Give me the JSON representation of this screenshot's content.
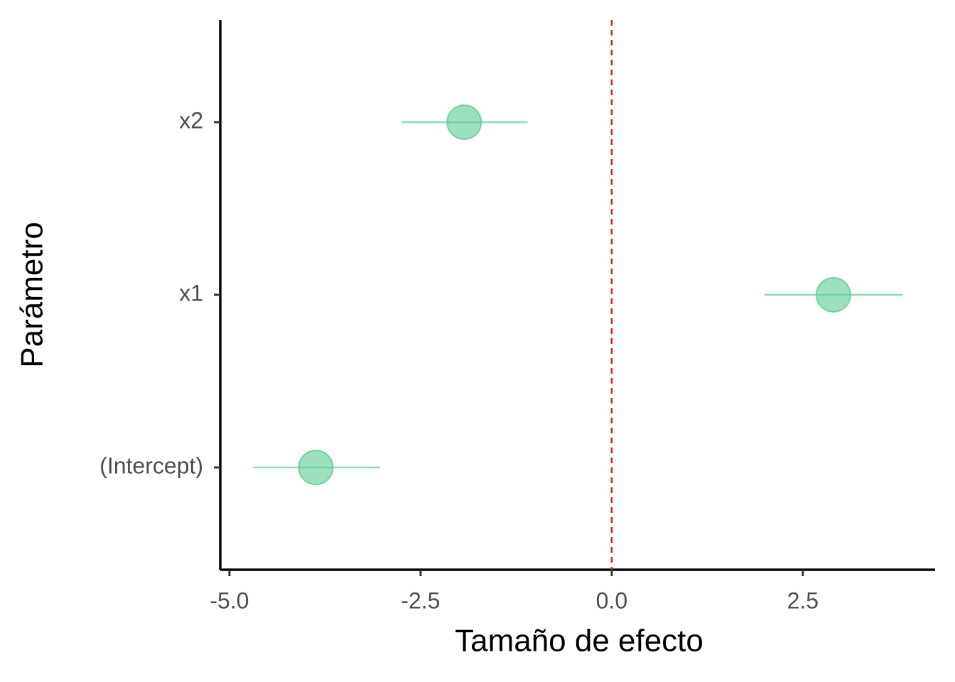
{
  "chart_data": {
    "type": "errorbar",
    "x_label": "Tamaño de efecto",
    "y_label": "Parámetro",
    "categories": [
      "(Intercept)",
      "x1",
      "x2"
    ],
    "values": [
      -3.87,
      2.9,
      -1.93
    ],
    "lower": [
      -4.69,
      2.0,
      -2.75
    ],
    "upper": [
      -3.03,
      3.81,
      -1.1
    ],
    "color": "#5ccb94",
    "xlim": [
      -5.12,
      4.23
    ],
    "xticks": [
      {
        "value": -5,
        "label": "-5.0"
      },
      {
        "value": -2.5,
        "label": "-2.5"
      },
      {
        "value": 0,
        "label": "0.0"
      },
      {
        "value": 2.5,
        "label": "2.5"
      }
    ],
    "reference_line": {
      "value": 0,
      "color": "#e41a1c",
      "dashed": true
    },
    "grid": false
  }
}
